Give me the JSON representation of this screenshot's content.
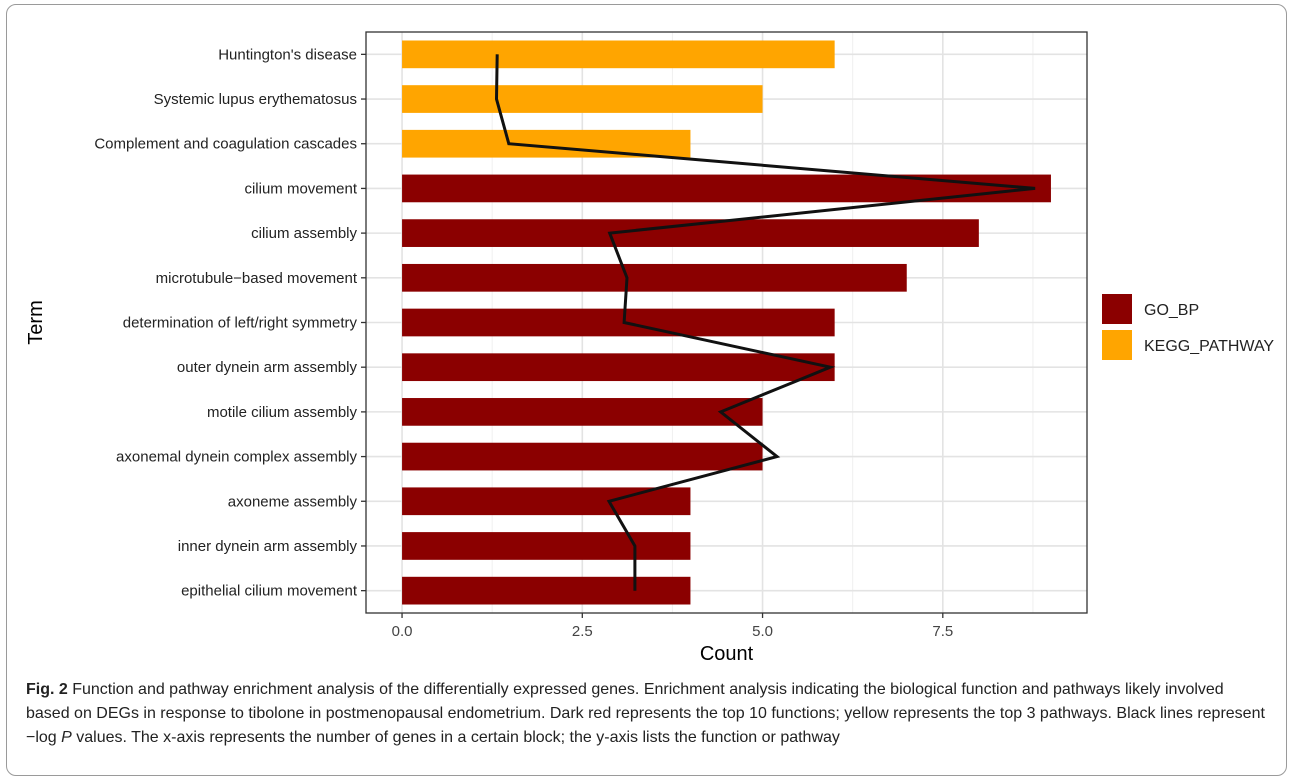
{
  "chart_data": {
    "type": "bar",
    "xlabel": "Count",
    "ylabel": "Term",
    "xlim": [
      -0.5,
      9.5
    ],
    "xticks": [
      "0.0",
      "2.5",
      "5.0",
      "7.5"
    ],
    "xtick_values": [
      0,
      2.5,
      5,
      7.5
    ],
    "grid": true,
    "legend_position": "right",
    "categories": [
      "Huntington's disease",
      "Systemic lupus erythematosus",
      "Complement and coagulation cascades",
      "cilium movement",
      "cilium assembly",
      "microtubule−based movement",
      "determination of left/right symmetry",
      "outer dynein arm assembly",
      "motile cilium assembly",
      "axonemal dynein complex assembly",
      "axoneme assembly",
      "inner dynein arm assembly",
      "epithelial cilium movement"
    ],
    "values": [
      6,
      5,
      4,
      9,
      8,
      7,
      6,
      6,
      5,
      5,
      4,
      4,
      4
    ],
    "groups": [
      "KEGG_PATHWAY",
      "KEGG_PATHWAY",
      "KEGG_PATHWAY",
      "GO_BP",
      "GO_BP",
      "GO_BP",
      "GO_BP",
      "GO_BP",
      "GO_BP",
      "GO_BP",
      "GO_BP",
      "GO_BP",
      "GO_BP"
    ],
    "legend": [
      {
        "name": "GO_BP",
        "color": "#8b0000"
      },
      {
        "name": "KEGG_PATHWAY",
        "color": "#ffa500"
      }
    ],
    "neg_log_p": [
      1.32,
      1.31,
      1.48,
      8.78,
      2.88,
      3.12,
      3.08,
      5.94,
      4.42,
      5.2,
      2.87,
      3.23,
      3.23
    ]
  },
  "caption": {
    "label": "Fig. 2",
    "text_before_italic": "  Function and pathway enrichment analysis of the differentially expressed genes. Enrichment analysis indicating the biological function and pathways likely involved based on DEGs in response to tibolone in postmenopausal endometrium. Dark red represents the top 10 functions; yellow represents the top 3 pathways. Black lines represent −log ",
    "italic": "P",
    "text_after_italic": " values. The x-axis represents the number of genes in a certain block; the y-axis lists the function or pathway"
  }
}
